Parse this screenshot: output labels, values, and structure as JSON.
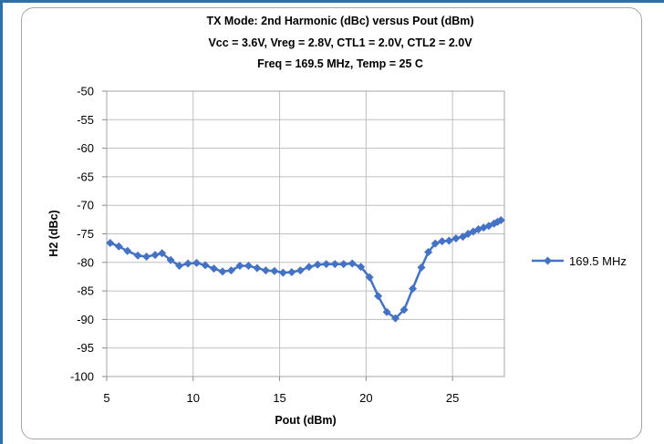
{
  "chart_data": {
    "type": "line",
    "title_lines": [
      "TX Mode:  2nd Harmonic (dBc) versus Pout (dBm)",
      "Vcc = 3.6V,  Vreg  = 2.8V, CTL1 = 2.0V, CTL2 = 2.0V",
      "Freq = 169.5 MHz, Temp = 25 C"
    ],
    "xlabel": "Pout (dBm)",
    "ylabel": "H2 (dBc)",
    "xlim": [
      5,
      28
    ],
    "ylim": [
      -100,
      -50
    ],
    "xticks": [
      "5",
      "10",
      "15",
      "20",
      "25"
    ],
    "yticks": [
      "-50",
      "-55",
      "-60",
      "-65",
      "-70",
      "-75",
      "-80",
      "-85",
      "-90",
      "-95",
      "-100"
    ],
    "grid": true,
    "legend_position": "right",
    "series": [
      {
        "name": "169.5 MHz",
        "color": "#4472c4",
        "x": [
          5.2,
          5.7,
          6.2,
          6.8,
          7.3,
          7.8,
          8.2,
          8.7,
          9.2,
          9.7,
          10.2,
          10.7,
          11.2,
          11.7,
          12.2,
          12.7,
          13.2,
          13.7,
          14.2,
          14.7,
          15.2,
          15.7,
          16.2,
          16.7,
          17.2,
          17.7,
          18.2,
          18.7,
          19.2,
          19.7,
          20.2,
          20.7,
          21.2,
          21.7,
          22.2,
          22.7,
          23.2,
          23.6,
          24.0,
          24.4,
          24.8,
          25.2,
          25.6,
          25.9,
          26.2,
          26.5,
          26.8,
          27.1,
          27.4,
          27.6,
          27.8
        ],
        "y": [
          -76.6,
          -77.2,
          -78.0,
          -78.8,
          -79.0,
          -78.7,
          -78.4,
          -79.6,
          -80.6,
          -80.2,
          -80.1,
          -80.5,
          -81.1,
          -81.6,
          -81.4,
          -80.6,
          -80.6,
          -81.0,
          -81.4,
          -81.5,
          -81.8,
          -81.7,
          -81.4,
          -80.8,
          -80.4,
          -80.3,
          -80.3,
          -80.3,
          -80.2,
          -80.8,
          -82.6,
          -85.9,
          -88.7,
          -89.8,
          -88.3,
          -84.6,
          -80.9,
          -78.2,
          -76.7,
          -76.3,
          -76.2,
          -75.8,
          -75.5,
          -75.0,
          -74.6,
          -74.2,
          -73.9,
          -73.6,
          -73.2,
          -72.9,
          -72.6
        ]
      }
    ]
  }
}
